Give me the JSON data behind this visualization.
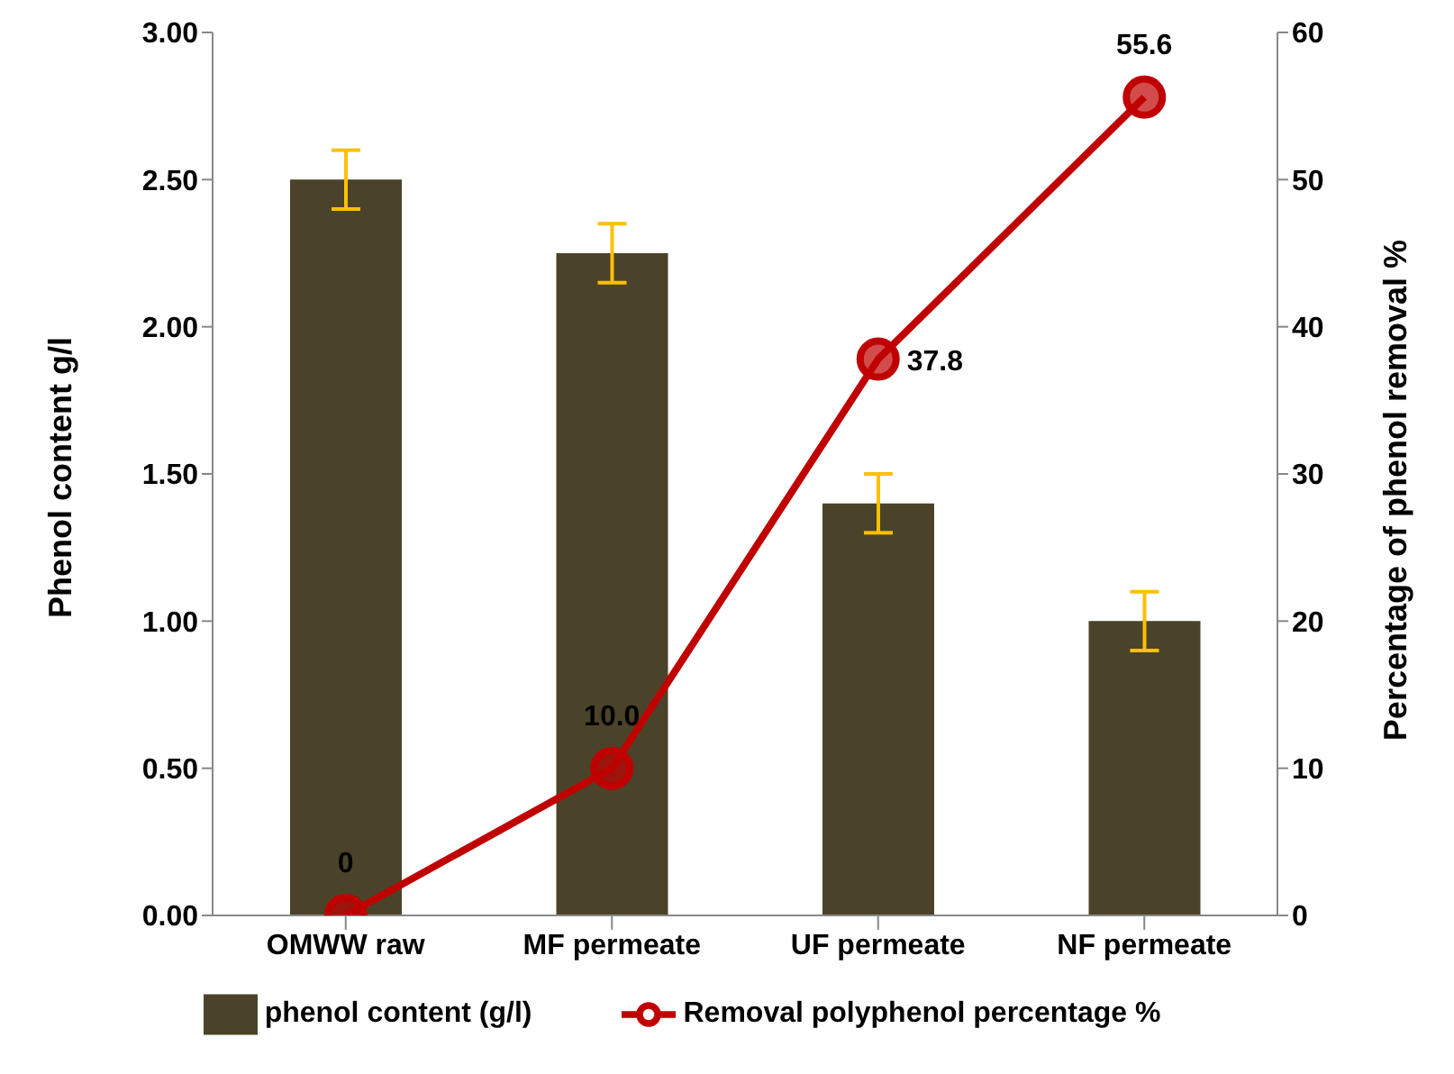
{
  "chart_data": {
    "type": "bar",
    "categories": [
      "OMWW raw",
      "MF permeate",
      "UF permeate",
      "NF permeate"
    ],
    "ylabel": "Phenol content g/l",
    "y2label": "Percentage of phenol removal %",
    "ylim": [
      0,
      3
    ],
    "yticks": [
      {
        "value": 0,
        "label": "0.00"
      },
      {
        "value": 0.5,
        "label": "0.50"
      },
      {
        "value": 1,
        "label": "1.00"
      },
      {
        "value": 1.5,
        "label": "1.50"
      },
      {
        "value": 2,
        "label": "2.00"
      },
      {
        "value": 2.5,
        "label": "2.50"
      },
      {
        "value": 3,
        "label": "3.00"
      }
    ],
    "y2lim": [
      0,
      60
    ],
    "y2ticks": [
      0,
      10,
      20,
      30,
      40,
      50,
      60
    ],
    "series": [
      {
        "name": "phenol content (g/l)",
        "color": "#4b4329",
        "values": [
          2.5,
          2.25,
          1.4,
          1.0
        ],
        "errors": [
          0.1,
          0.1,
          0.1,
          0.1
        ]
      },
      {
        "name": "Removal polyphenol percentage %",
        "type": "line",
        "axis": "y2",
        "color": "#c00000",
        "marker": "circle",
        "values": [
          0,
          10.0,
          37.8,
          55.6
        ],
        "value_labels": [
          "0",
          "10.0",
          "37.8",
          "55.6"
        ]
      }
    ],
    "grid": false,
    "legend": "bottom"
  }
}
